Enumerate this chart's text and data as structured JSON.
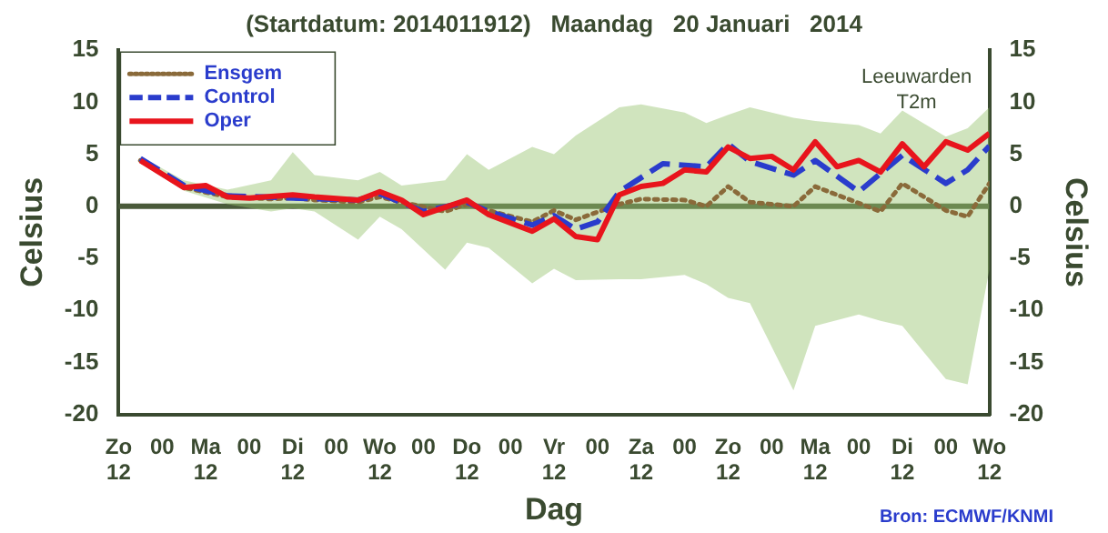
{
  "chart_data": {
    "type": "line",
    "title": "(Startdatum: 2014011912)   Maandag   20 Januari   2014",
    "xlabel": "Dag",
    "ylabel": "Celsius",
    "y2label": "Celsius",
    "annotations": [
      "Leeuwarden",
      "T2m",
      "Bron: ECMWF/KNMI"
    ],
    "xlim": [
      "2014-01-19T12:00",
      "2014-01-29T12:00"
    ],
    "xticks": [
      {
        "value": "2014-01-19T12:00",
        "label": "Zo\n12"
      },
      {
        "value": "2014-01-20T00:00",
        "label": "00"
      },
      {
        "value": "2014-01-20T12:00",
        "label": "Ma\n12"
      },
      {
        "value": "2014-01-21T00:00",
        "label": "00"
      },
      {
        "value": "2014-01-21T12:00",
        "label": "Di\n12"
      },
      {
        "value": "2014-01-22T00:00",
        "label": "00"
      },
      {
        "value": "2014-01-22T12:00",
        "label": "Wo\n12"
      },
      {
        "value": "2014-01-23T00:00",
        "label": "00"
      },
      {
        "value": "2014-01-23T12:00",
        "label": "Do\n12"
      },
      {
        "value": "2014-01-24T00:00",
        "label": "00"
      },
      {
        "value": "2014-01-24T12:00",
        "label": "Vr\n12"
      },
      {
        "value": "2014-01-25T00:00",
        "label": "00"
      },
      {
        "value": "2014-01-25T12:00",
        "label": "Za\n12"
      },
      {
        "value": "2014-01-26T00:00",
        "label": "00"
      },
      {
        "value": "2014-01-26T12:00",
        "label": "Zo\n12"
      },
      {
        "value": "2014-01-27T00:00",
        "label": "00"
      },
      {
        "value": "2014-01-27T12:00",
        "label": "Ma\n12"
      },
      {
        "value": "2014-01-28T00:00",
        "label": "00"
      },
      {
        "value": "2014-01-28T12:00",
        "label": "Di\n12"
      },
      {
        "value": "2014-01-29T00:00",
        "label": "00"
      },
      {
        "value": "2014-01-29T12:00",
        "label": "Wo\n12"
      }
    ],
    "ylim": [
      -20,
      15
    ],
    "yticks": [
      -20,
      -15,
      -10,
      -5,
      0,
      5,
      10,
      15
    ],
    "y2lim": [
      -20,
      15
    ],
    "y2ticks": [
      -20,
      -15,
      -10,
      -5,
      0,
      5,
      10,
      15
    ],
    "grid": false,
    "legend": "top left",
    "marker": "none",
    "ref_lines": [
      {
        "axis": "y",
        "value": 0,
        "color": "#4a5a3a"
      }
    ],
    "series": [
      {
        "name": "Ensgem",
        "color": "#8a6a3a",
        "line_style": "dotted",
        "x": [
          "2014-01-19T18:00",
          "2014-01-20T06:00",
          "2014-01-20T18:00",
          "2014-01-21T06:00",
          "2014-01-21T12:00",
          "2014-01-21T18:00",
          "2014-01-22T06:00",
          "2014-01-22T12:00",
          "2014-01-22T18:00",
          "2014-01-23T06:00",
          "2014-01-23T12:00",
          "2014-01-23T18:00",
          "2014-01-24T06:00",
          "2014-01-24T12:00",
          "2014-01-24T18:00",
          "2014-01-25T06:00",
          "2014-01-25T12:00",
          "2014-01-26T00:00",
          "2014-01-26T06:00",
          "2014-01-26T12:00",
          "2014-01-26T18:00",
          "2014-01-27T06:00",
          "2014-01-27T12:00",
          "2014-01-28T00:00",
          "2014-01-28T06:00",
          "2014-01-28T12:00",
          "2014-01-29T00:00",
          "2014-01-29T06:00",
          "2014-01-29T12:00"
        ],
        "values": [
          4.4,
          1.8,
          0.9,
          0.7,
          0.8,
          0.6,
          0.4,
          0.9,
          0.4,
          -0.5,
          0.2,
          -0.4,
          -1.5,
          -0.4,
          -1.3,
          0.2,
          0.7,
          0.6,
          0.0,
          1.9,
          0.4,
          0.0,
          1.9,
          0.3,
          -0.5,
          2.2,
          -0.4,
          -1.0,
          2.2
        ],
        "lower": [
          4.3,
          1.5,
          0.2,
          -0.5,
          -0.2,
          -0.5,
          -3.2,
          -1.0,
          -2.2,
          -6.1,
          -3.5,
          -4.0,
          -7.4,
          -6.0,
          -7.1,
          -7.0,
          -7.0,
          -6.6,
          -7.5,
          -8.8,
          -9.3,
          -17.7,
          -11.5,
          -10.4,
          -11.0,
          -11.5,
          -16.6,
          -17.1,
          -6.1
        ],
        "upper": [
          4.8,
          2.5,
          1.6,
          2.5,
          5.2,
          3.0,
          2.5,
          3.3,
          2.0,
          2.5,
          5.0,
          3.5,
          5.7,
          5.0,
          6.8,
          9.5,
          9.8,
          9.0,
          8.0,
          8.8,
          9.5,
          8.5,
          8.2,
          7.8,
          7.0,
          9.2,
          6.7,
          7.5,
          9.5
        ]
      },
      {
        "name": "Control",
        "color": "#2a3ccc",
        "line_style": "dashed",
        "x": [
          "2014-01-19T18:00",
          "2014-01-20T06:00",
          "2014-01-20T18:00",
          "2014-01-21T12:00",
          "2014-01-22T06:00",
          "2014-01-22T12:00",
          "2014-01-23T00:00",
          "2014-01-23T12:00",
          "2014-01-23T18:00",
          "2014-01-24T06:00",
          "2014-01-24T12:00",
          "2014-01-24T18:00",
          "2014-01-25T00:00",
          "2014-01-25T06:00",
          "2014-01-25T18:00",
          "2014-01-26T06:00",
          "2014-01-26T12:00",
          "2014-01-26T18:00",
          "2014-01-27T06:00",
          "2014-01-27T12:00",
          "2014-01-28T00:00",
          "2014-01-28T12:00",
          "2014-01-29T00:00",
          "2014-01-29T06:00",
          "2014-01-29T12:00"
        ],
        "values": [
          4.6,
          2.0,
          1.0,
          0.8,
          0.6,
          1.2,
          -0.5,
          0.4,
          -0.5,
          -1.8,
          -0.9,
          -2.2,
          -1.5,
          1.4,
          4.1,
          3.8,
          6.0,
          4.3,
          3.0,
          4.4,
          1.4,
          4.9,
          2.2,
          3.5,
          5.8
        ]
      },
      {
        "name": "Oper",
        "color": "#e8141c",
        "line_style": "solid",
        "x": [
          "2014-01-19T18:00",
          "2014-01-20T06:00",
          "2014-01-20T12:00",
          "2014-01-20T18:00",
          "2014-01-21T00:00",
          "2014-01-21T12:00",
          "2014-01-21T18:00",
          "2014-01-22T06:00",
          "2014-01-22T12:00",
          "2014-01-22T18:00",
          "2014-01-23T00:00",
          "2014-01-23T12:00",
          "2014-01-23T18:00",
          "2014-01-24T06:00",
          "2014-01-24T12:00",
          "2014-01-24T18:00",
          "2014-01-25T00:00",
          "2014-01-25T06:00",
          "2014-01-25T12:00",
          "2014-01-25T18:00",
          "2014-01-26T00:00",
          "2014-01-26T06:00",
          "2014-01-26T12:00",
          "2014-01-26T18:00",
          "2014-01-27T00:00",
          "2014-01-27T06:00",
          "2014-01-27T12:00",
          "2014-01-27T18:00",
          "2014-01-28T00:00",
          "2014-01-28T06:00",
          "2014-01-28T12:00",
          "2014-01-28T18:00",
          "2014-01-29T00:00",
          "2014-01-29T06:00",
          "2014-01-29T12:00"
        ],
        "values": [
          4.4,
          1.8,
          2.0,
          0.9,
          0.8,
          1.1,
          0.9,
          0.6,
          1.4,
          0.6,
          -0.8,
          0.6,
          -0.8,
          -2.4,
          -1.2,
          -2.9,
          -3.2,
          1.1,
          1.9,
          2.2,
          3.5,
          3.3,
          5.7,
          4.6,
          4.8,
          3.5,
          6.2,
          3.8,
          4.4,
          3.3,
          6.0,
          3.8,
          6.2,
          5.4,
          7.0
        ]
      }
    ]
  }
}
